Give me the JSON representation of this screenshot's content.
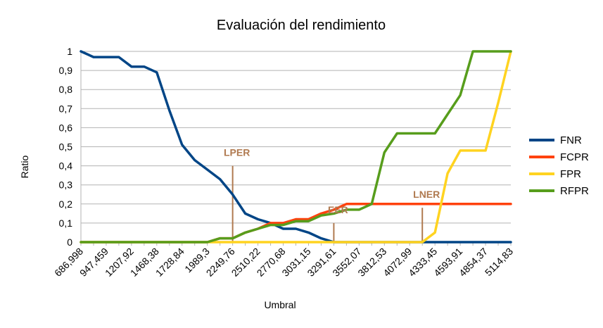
{
  "chart_data": {
    "type": "line",
    "title": "Evaluación del rendimiento",
    "xlabel": "Umbral",
    "ylabel": "Ratio",
    "ylim": [
      0,
      1
    ],
    "y_ticks": [
      "0",
      "0,1",
      "0,2",
      "0,3",
      "0,4",
      "0,5",
      "0,6",
      "0,7",
      "0,8",
      "0,9",
      "1"
    ],
    "x_tick_labels": [
      "686,998",
      "947,459",
      "1207,92",
      "1468,38",
      "1728,84",
      "1989,3",
      "2249,76",
      "2510,22",
      "2770,68",
      "3031,15",
      "3291,61",
      "3552,07",
      "3812,53",
      "4072,99",
      "4333,45",
      "4593,91",
      "4854,37",
      "5114,83"
    ],
    "x": [
      686.998,
      817.23,
      947.459,
      1077.69,
      1207.92,
      1338.15,
      1468.38,
      1598.61,
      1728.84,
      1859.07,
      1989.3,
      2119.53,
      2249.76,
      2379.99,
      2510.22,
      2640.45,
      2770.68,
      2900.92,
      3031.15,
      3161.38,
      3291.61,
      3421.84,
      3552.07,
      3682.3,
      3812.53,
      3942.76,
      4072.99,
      4203.22,
      4333.45,
      4463.68,
      4593.91,
      4724.14,
      4854.37,
      4984.6,
      5114.83
    ],
    "grid": true,
    "legend_position": "right",
    "series": [
      {
        "name": "FNR",
        "color": "#004586",
        "values": [
          1,
          0.97,
          0.97,
          0.97,
          0.92,
          0.92,
          0.89,
          0.69,
          0.51,
          0.43,
          0.38,
          0.33,
          0.25,
          0.15,
          0.12,
          0.1,
          0.07,
          0.07,
          0.05,
          0.02,
          0,
          0,
          0,
          0,
          0,
          0,
          0,
          0,
          0,
          0,
          0,
          0,
          0,
          0,
          0
        ]
      },
      {
        "name": "FCPR",
        "color": "#FF420E",
        "values": [
          0,
          0,
          0,
          0,
          0,
          0,
          0,
          0,
          0,
          0,
          0,
          0.02,
          0.02,
          0.05,
          0.07,
          0.1,
          0.1,
          0.12,
          0.12,
          0.15,
          0.17,
          0.2,
          0.2,
          0.2,
          0.2,
          0.2,
          0.2,
          0.2,
          0.2,
          0.2,
          0.2,
          0.2,
          0.2,
          0.2,
          0.2
        ]
      },
      {
        "name": "FPR",
        "color": "#FFD320",
        "values": [
          0,
          0,
          0,
          0,
          0,
          0,
          0,
          0,
          0,
          0,
          0,
          0,
          0,
          0,
          0,
          0,
          0,
          0,
          0,
          0,
          0,
          0,
          0,
          0,
          0,
          0,
          0,
          0,
          0.05,
          0.36,
          0.48,
          0.48,
          0.48,
          0.73,
          1
        ]
      },
      {
        "name": "RFPR",
        "color": "#579D1C",
        "values": [
          0,
          0,
          0,
          0,
          0,
          0,
          0,
          0,
          0,
          0,
          0,
          0.02,
          0.02,
          0.05,
          0.07,
          0.09,
          0.09,
          0.11,
          0.11,
          0.14,
          0.15,
          0.17,
          0.17,
          0.2,
          0.47,
          0.57,
          0.57,
          0.57,
          0.57,
          0.67,
          0.77,
          1,
          1,
          1,
          1
        ]
      }
    ],
    "annotations": [
      {
        "label": "LPER",
        "x": 2249.76,
        "y": 0.4,
        "color": "#B07A50"
      },
      {
        "label": "EER",
        "x": 3291.61,
        "y": 0.1,
        "color": "#B07A50"
      },
      {
        "label": "LNER",
        "x": 4203.22,
        "y": 0.18,
        "color": "#B07A50"
      }
    ]
  }
}
